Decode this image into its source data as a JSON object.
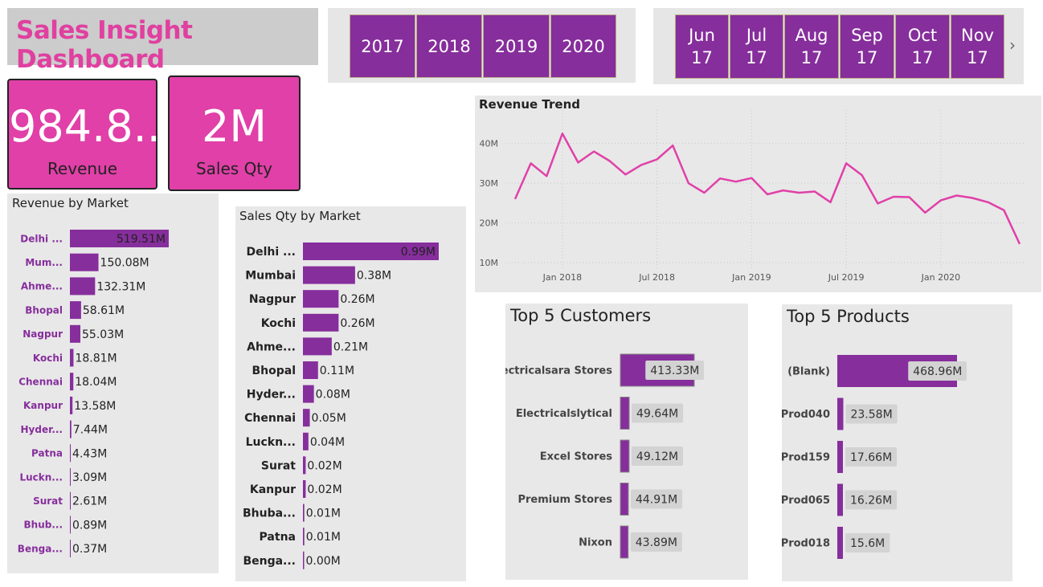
{
  "header": {
    "title": "Sales Insight Dashboard"
  },
  "year_slicer": {
    "items": [
      "2017",
      "2018",
      "2019",
      "2020"
    ]
  },
  "month_slicer": {
    "items": [
      {
        "mon": "Jun",
        "yr": "17"
      },
      {
        "mon": "Jul",
        "yr": "17"
      },
      {
        "mon": "Aug",
        "yr": "17"
      },
      {
        "mon": "Sep",
        "yr": "17"
      },
      {
        "mon": "Oct",
        "yr": "17"
      },
      {
        "mon": "Nov",
        "yr": "17"
      }
    ],
    "next_icon": "chevron-right-icon"
  },
  "kpis": {
    "revenue": {
      "value": "984.8...",
      "label": "Revenue"
    },
    "sales_qty": {
      "value": "2M",
      "label": "Sales Qty"
    }
  },
  "colors": {
    "accent": "#e040a8",
    "bar": "#862e9c",
    "line": "#e040a8",
    "label_purple": "#862e9c"
  },
  "chart_data": [
    {
      "id": "revenue_by_market",
      "type": "bar",
      "orientation": "horizontal",
      "title": "Revenue by Market",
      "categories": [
        "Delhi ...",
        "Mum...",
        "Ahme...",
        "Bhopal",
        "Nagpur",
        "Kochi",
        "Chennai",
        "Kanpur",
        "Hyder...",
        "Patna",
        "Luckn...",
        "Surat",
        "Bhub...",
        "Benga..."
      ],
      "values": [
        519.51,
        150.08,
        132.31,
        58.61,
        55.03,
        18.81,
        18.04,
        13.58,
        7.44,
        4.43,
        3.09,
        2.61,
        0.89,
        0.37
      ],
      "labels": [
        "519.51M",
        "150.08M",
        "132.31M",
        "58.61M",
        "55.03M",
        "18.81M",
        "18.04M",
        "13.58M",
        "7.44M",
        "4.43M",
        "3.09M",
        "2.61M",
        "0.89M",
        "0.37M"
      ],
      "unit": "M"
    },
    {
      "id": "sales_qty_by_market",
      "type": "bar",
      "orientation": "horizontal",
      "title": "Sales Qty by Market",
      "categories": [
        "Delhi ...",
        "Mumbai",
        "Nagpur",
        "Kochi",
        "Ahme...",
        "Bhopal",
        "Hyder...",
        "Chennai",
        "Luckn...",
        "Surat",
        "Kanpur",
        "Bhuba...",
        "Patna",
        "Benga..."
      ],
      "values": [
        0.99,
        0.38,
        0.26,
        0.26,
        0.21,
        0.11,
        0.08,
        0.05,
        0.04,
        0.02,
        0.02,
        0.01,
        0.01,
        0.0
      ],
      "labels": [
        "0.99M",
        "0.38M",
        "0.26M",
        "0.26M",
        "0.21M",
        "0.11M",
        "0.08M",
        "0.05M",
        "0.04M",
        "0.02M",
        "0.02M",
        "0.01M",
        "0.01M",
        "0.00M"
      ],
      "unit": "M"
    },
    {
      "id": "revenue_trend",
      "type": "line",
      "title": "Revenue Trend",
      "x_start": "2017-10",
      "x_tick_labels": [
        "Jan 2018",
        "Jul 2018",
        "Jan 2019",
        "Jul 2019",
        "Jan 2020"
      ],
      "x_tick_months": [
        "2018-01",
        "2018-07",
        "2019-01",
        "2019-07",
        "2020-01"
      ],
      "y_tick_labels": [
        "10M",
        "20M",
        "30M",
        "40M"
      ],
      "y_tick_values": [
        10,
        20,
        30,
        40
      ],
      "ylim": [
        8,
        46
      ],
      "grid": true,
      "values": [
        26,
        35,
        31.8,
        42.5,
        35.2,
        38,
        35.6,
        32.2,
        34.6,
        36,
        39.5,
        30,
        27.6,
        31.2,
        30.4,
        31.3,
        27.2,
        28.2,
        27.6,
        27.9,
        25.2,
        35,
        32,
        24.9,
        26.6,
        26.5,
        22.6,
        25.7,
        26.9,
        26.3,
        25.2,
        23.2,
        14.7
      ]
    },
    {
      "id": "top_5_customers",
      "type": "bar",
      "orientation": "horizontal",
      "title": "Top 5 Customers",
      "categories": [
        "Electricalsara Stores",
        "Electricalslytical",
        "Excel Stores",
        "Premium Stores",
        "Nixon"
      ],
      "values": [
        413.33,
        49.64,
        49.12,
        44.91,
        43.89
      ],
      "labels": [
        "413.33M",
        "49.64M",
        "49.12M",
        "44.91M",
        "43.89M"
      ],
      "unit": "M"
    },
    {
      "id": "top_5_products",
      "type": "bar",
      "orientation": "horizontal",
      "title": "Top 5 Products",
      "categories": [
        "(Blank)",
        "Prod040",
        "Prod159",
        "Prod065",
        "Prod018"
      ],
      "values": [
        468.96,
        23.58,
        17.66,
        16.26,
        15.6
      ],
      "labels": [
        "468.96M",
        "23.58M",
        "17.66M",
        "16.26M",
        "15.6M"
      ],
      "unit": "M"
    }
  ]
}
